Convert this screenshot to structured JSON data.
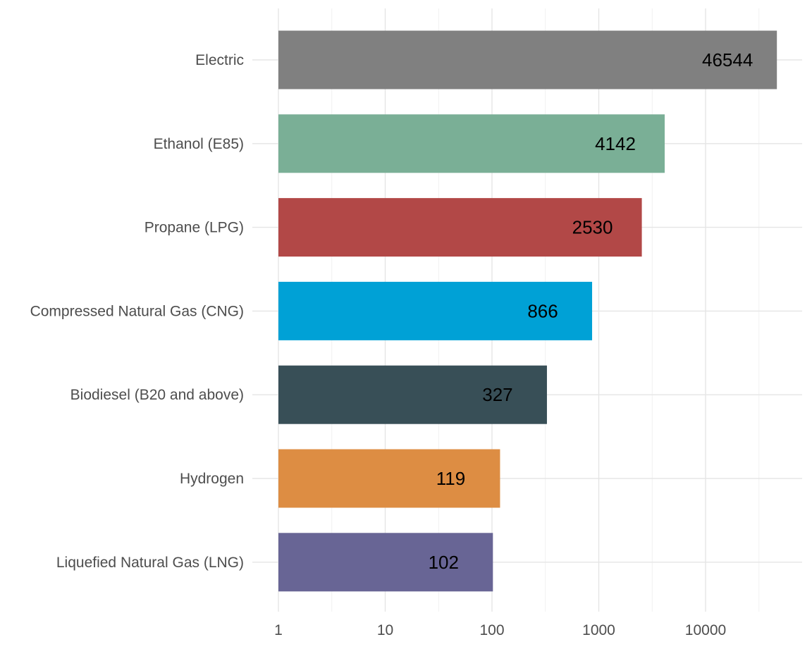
{
  "chart_data": {
    "type": "bar",
    "orientation": "horizontal",
    "x_scale": "log10",
    "xlim": [
      1,
      50000
    ],
    "x_ticks": [
      "1",
      "10",
      "100",
      "1000",
      "10000"
    ],
    "grid": true,
    "legend": "none",
    "title": "",
    "xlabel": "",
    "ylabel": "",
    "categories": [
      "Electric",
      "Ethanol (E85)",
      "Propane (LPG)",
      "Compressed Natural Gas (CNG)",
      "Biodiesel (B20 and above)",
      "Hydrogen",
      "Liquefied Natural Gas (LNG)"
    ],
    "values": [
      46544,
      4142,
      2530,
      866,
      327,
      119,
      102
    ],
    "data_labels": [
      "46544",
      "4142",
      "2530",
      "866",
      "327",
      "119",
      "102"
    ],
    "colors": [
      "#808080",
      "#7aaf96",
      "#b24847",
      "#00a1d6",
      "#384f57",
      "#dd8d43",
      "#686595"
    ]
  }
}
